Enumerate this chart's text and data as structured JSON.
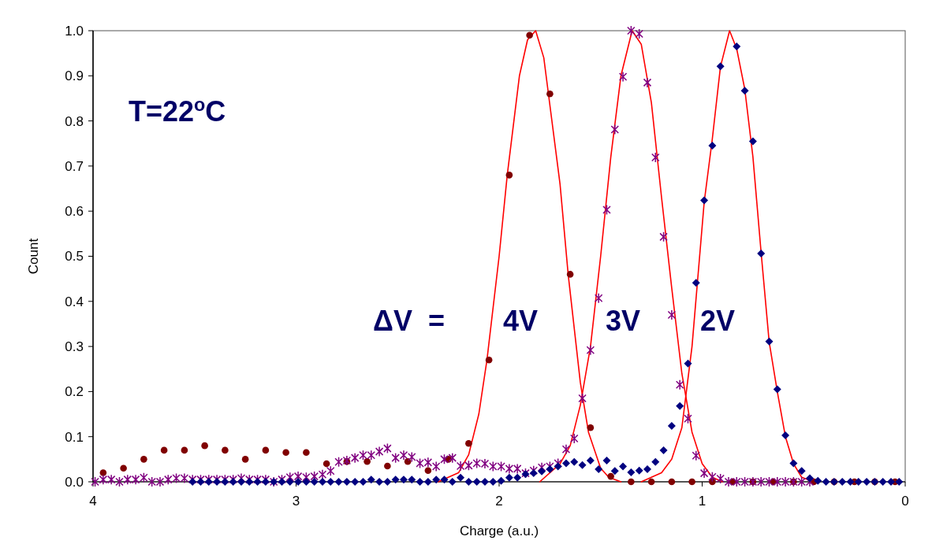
{
  "chart_data": {
    "type": "scatter",
    "xlabel": "Charge (a.u.)",
    "ylabel": "Count",
    "xlim": [
      4,
      0
    ],
    "xticks": [
      4,
      3,
      2,
      1,
      0
    ],
    "ylim": [
      0,
      1
    ],
    "yticks": [
      {
        "value": 0,
        "label": "0.0"
      },
      0.1,
      0.2,
      0.3,
      0.4,
      0.5,
      0.6,
      0.7,
      0.8,
      0.9,
      {
        "value": 1,
        "label": "1.0"
      }
    ],
    "grid": false,
    "annotations": [
      "T=22$^{o}$C",
      "ΔV  =",
      "4V",
      "3V",
      "2V"
    ],
    "series": [
      {
        "type": "line",
        "marker": "none",
        "line_style": "solid",
        "color": "#ff0000",
        "x": [
          2.3,
          2.2,
          2.15,
          2.1,
          2.06,
          2.0,
          1.96,
          1.9,
          1.86,
          1.82,
          1.78,
          1.76,
          1.7,
          1.66,
          1.6,
          1.56,
          1.5,
          1.46,
          1.4
        ],
        "values": [
          0,
          0.02,
          0.06,
          0.15,
          0.27,
          0.5,
          0.68,
          0.9,
          0.98,
          1.0,
          0.94,
          0.87,
          0.66,
          0.46,
          0.22,
          0.11,
          0.03,
          0.01,
          0
        ]
      },
      {
        "type": "line",
        "marker": "none",
        "line_style": "solid",
        "color": "#ff0000",
        "x": [
          1.8,
          1.7,
          1.65,
          1.6,
          1.55,
          1.5,
          1.45,
          1.4,
          1.345,
          1.3,
          1.25,
          1.2,
          1.15,
          1.1,
          1.05,
          1.0,
          0.95,
          0.9
        ],
        "values": [
          0,
          0.04,
          0.08,
          0.17,
          0.3,
          0.5,
          0.72,
          0.9,
          1.0,
          0.97,
          0.84,
          0.63,
          0.43,
          0.24,
          0.11,
          0.04,
          0.01,
          0
        ]
      },
      {
        "type": "line",
        "marker": "none",
        "line_style": "solid",
        "color": "#ff0000",
        "x": [
          1.3,
          1.2,
          1.15,
          1.1,
          1.05,
          0.99,
          0.95,
          0.91,
          0.865,
          0.83,
          0.79,
          0.75,
          0.71,
          0.67,
          0.63,
          0.59,
          0.55,
          0.51,
          0.45
        ],
        "values": [
          0,
          0.02,
          0.05,
          0.12,
          0.3,
          0.62,
          0.76,
          0.92,
          1.0,
          0.96,
          0.87,
          0.72,
          0.51,
          0.31,
          0.2,
          0.1,
          0.04,
          0.01,
          0
        ]
      },
      {
        "marker": "circle",
        "color": "#800000",
        "x": [
          3.95,
          3.85,
          3.75,
          3.65,
          3.55,
          3.45,
          3.35,
          3.25,
          3.15,
          3.05,
          2.95,
          2.85,
          2.75,
          2.65,
          2.55,
          2.45,
          2.35,
          2.25,
          2.15,
          2.05,
          1.95,
          1.85,
          1.75,
          1.65,
          1.55,
          1.45,
          1.35,
          1.25,
          1.15,
          1.05,
          0.95,
          0.85,
          0.75,
          0.65,
          0.55,
          0.45,
          0.35,
          0.25,
          0.15,
          0.05
        ],
        "values": [
          0.02,
          0.03,
          0.05,
          0.07,
          0.07,
          0.08,
          0.07,
          0.05,
          0.07,
          0.065,
          0.065,
          0.04,
          0.045,
          0.045,
          0.035,
          0.045,
          0.025,
          0.05,
          0.085,
          0.27,
          0.68,
          0.99,
          0.86,
          0.46,
          0.12,
          0.012,
          0,
          0,
          0,
          0,
          0,
          0,
          0,
          0,
          0,
          0,
          0,
          0,
          0,
          0
        ]
      },
      {
        "marker": "cross",
        "color": "#800080",
        "x": [
          3.99,
          3.95,
          3.91,
          3.87,
          3.83,
          3.79,
          3.75,
          3.71,
          3.67,
          3.63,
          3.59,
          3.55,
          3.51,
          3.47,
          3.43,
          3.39,
          3.35,
          3.31,
          3.27,
          3.23,
          3.19,
          3.15,
          3.11,
          3.07,
          3.03,
          2.99,
          2.95,
          2.91,
          2.87,
          2.83,
          2.79,
          2.75,
          2.71,
          2.67,
          2.63,
          2.59,
          2.55,
          2.51,
          2.47,
          2.43,
          2.39,
          2.35,
          2.31,
          2.27,
          2.23,
          2.19,
          2.15,
          2.11,
          2.07,
          2.03,
          1.99,
          1.95,
          1.91,
          1.87,
          1.83,
          1.79,
          1.75,
          1.71,
          1.67,
          1.63,
          1.59,
          1.55,
          1.51,
          1.47,
          1.43,
          1.39,
          1.35,
          1.31,
          1.27,
          1.23,
          1.19,
          1.15,
          1.11,
          1.07,
          1.03,
          0.99,
          0.95,
          0.91,
          0.87,
          0.83,
          0.79,
          0.75,
          0.71,
          0.67,
          0.63,
          0.59,
          0.55,
          0.51,
          0.47
        ],
        "values": [
          0,
          0.005,
          0.005,
          0,
          0.005,
          0.005,
          0.009,
          0,
          0,
          0.005,
          0.008,
          0.008,
          0.005,
          0.005,
          0.005,
          0.005,
          0.005,
          0.005,
          0.008,
          0.005,
          0.005,
          0.005,
          0,
          0.005,
          0.01,
          0.012,
          0.01,
          0.012,
          0.016,
          0.024,
          0.044,
          0.047,
          0.053,
          0.059,
          0.059,
          0.067,
          0.074,
          0.053,
          0.059,
          0.055,
          0.041,
          0.043,
          0.034,
          0.05,
          0.053,
          0.035,
          0.036,
          0.041,
          0.04,
          0.034,
          0.034,
          0.029,
          0.029,
          0.019,
          0.025,
          0.032,
          0.034,
          0.041,
          0.072,
          0.096,
          0.185,
          0.292,
          0.407,
          0.603,
          0.781,
          0.898,
          1.0,
          0.993,
          0.885,
          0.719,
          0.543,
          0.37,
          0.215,
          0.14,
          0.058,
          0.019,
          0.011,
          0.007,
          0,
          0,
          0,
          0,
          0,
          0,
          0,
          0,
          0,
          0,
          0
        ]
      },
      {
        "marker": "diamond",
        "color": "#000080",
        "x": [
          3.51,
          3.47,
          3.43,
          3.39,
          3.35,
          3.31,
          3.27,
          3.23,
          3.19,
          3.15,
          3.11,
          3.07,
          3.03,
          2.99,
          2.95,
          2.91,
          2.87,
          2.83,
          2.79,
          2.75,
          2.71,
          2.67,
          2.63,
          2.59,
          2.55,
          2.51,
          2.47,
          2.43,
          2.39,
          2.35,
          2.31,
          2.27,
          2.23,
          2.19,
          2.15,
          2.11,
          2.07,
          2.03,
          1.99,
          1.95,
          1.91,
          1.87,
          1.83,
          1.79,
          1.75,
          1.71,
          1.67,
          1.63,
          1.59,
          1.55,
          1.51,
          1.47,
          1.43,
          1.39,
          1.35,
          1.31,
          1.27,
          1.23,
          1.19,
          1.15,
          1.11,
          1.07,
          1.03,
          0.99,
          0.95,
          0.91,
          0.83,
          0.79,
          0.75,
          0.71,
          0.67,
          0.63,
          0.59,
          0.55,
          0.51,
          0.47,
          0.43,
          0.39,
          0.35,
          0.31,
          0.27,
          0.23,
          0.19,
          0.15,
          0.11,
          0.07,
          0.03
        ],
        "values": [
          0,
          0,
          0,
          0,
          0,
          0,
          0,
          0,
          0,
          0,
          0,
          0,
          0,
          0,
          0,
          0,
          0,
          0,
          0,
          0,
          0,
          0,
          0.005,
          0,
          0,
          0.005,
          0.005,
          0.005,
          0,
          0,
          0.005,
          0.005,
          0,
          0.009,
          0,
          0,
          0,
          0,
          0.002,
          0.009,
          0.009,
          0.017,
          0.019,
          0.023,
          0.028,
          0.034,
          0.041,
          0.044,
          0.037,
          0.047,
          0.028,
          0.047,
          0.024,
          0.034,
          0.021,
          0.025,
          0.028,
          0.044,
          0.07,
          0.124,
          0.168,
          0.262,
          0.441,
          0.624,
          0.745,
          0.921,
          0.965,
          0.867,
          0.755,
          0.506,
          0.311,
          0.205,
          0.103,
          0.041,
          0.024,
          0.008,
          0.002,
          0,
          0,
          0,
          0,
          0,
          0,
          0,
          0,
          0,
          0
        ]
      }
    ]
  }
}
